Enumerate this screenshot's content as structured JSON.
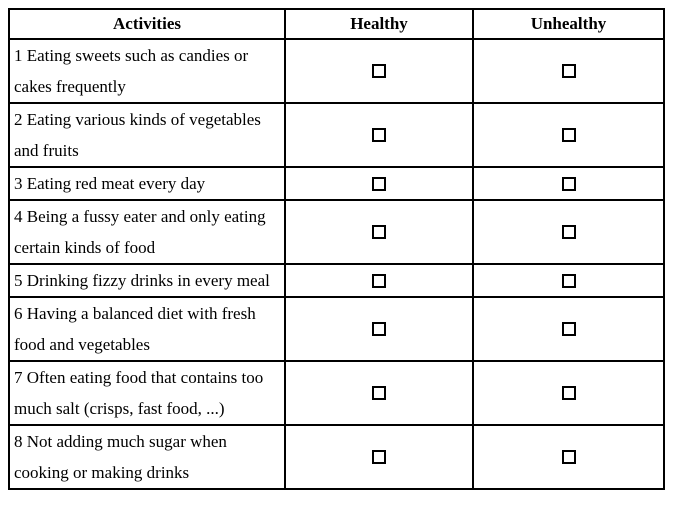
{
  "table": {
    "headers": [
      {
        "label": "Activities"
      },
      {
        "label": "Healthy"
      },
      {
        "label": "Unhealthy"
      }
    ],
    "rows": [
      {
        "activity": "1 Eating sweets such as candies or cakes frequently",
        "healthy_checked": false,
        "unhealthy_checked": false
      },
      {
        "activity": "2 Eating various kinds of vegetables and fruits",
        "healthy_checked": false,
        "unhealthy_checked": false
      },
      {
        "activity": "3 Eating red meat every day",
        "healthy_checked": false,
        "unhealthy_checked": false
      },
      {
        "activity": "4 Being a fussy eater and only eating certain kinds of food",
        "healthy_checked": false,
        "unhealthy_checked": false
      },
      {
        "activity": "5 Drinking fizzy drinks in every meal",
        "healthy_checked": false,
        "unhealthy_checked": false
      },
      {
        "activity": "6 Having a balanced diet with fresh food and vegetables",
        "healthy_checked": false,
        "unhealthy_checked": false
      },
      {
        "activity": "7 Often eating food that contains too much salt (crisps, fast food, ...)",
        "healthy_checked": false,
        "unhealthy_checked": false
      },
      {
        "activity": "8 Not adding much sugar when cooking or making drinks",
        "healthy_checked": false,
        "unhealthy_checked": false
      }
    ],
    "colors": {
      "border": "#000000",
      "text": "#000000",
      "background": "#ffffff"
    }
  }
}
